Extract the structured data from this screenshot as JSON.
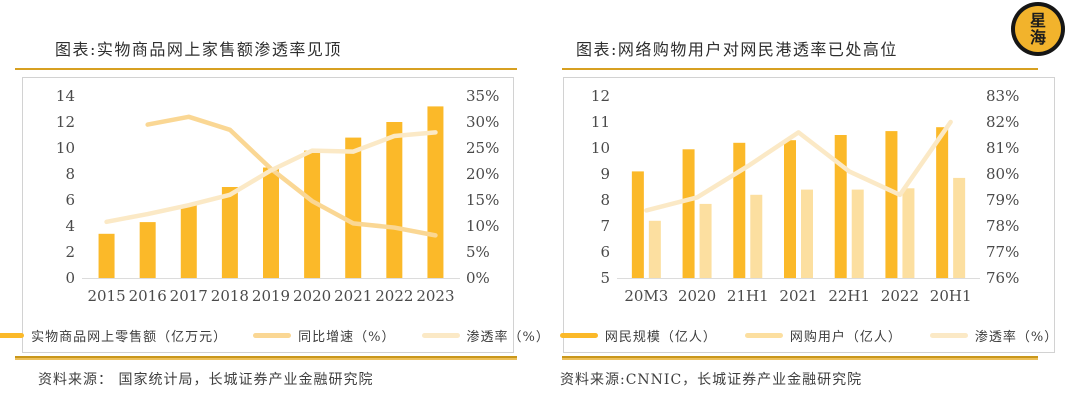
{
  "logo": {
    "char_top": "星",
    "char_bottom": "海",
    "face_color": "#F2B32C",
    "ring_color": "#161616"
  },
  "colors": {
    "accent_rule": "#D7A021",
    "box_border": "#D2D2D2",
    "axis_text": "#4A4A4A",
    "baseline": "#DCDCDC",
    "title_text": "#2E2E2E"
  },
  "charts": [
    {
      "title": "图表:实物商品网上家售额渗透率见顶",
      "source": "资料来源： 国家统计局，长城证券产业金融研究院"
    },
    {
      "title": "图表:网络购物用户对网民港透率已处高位",
      "source": "资料来源:CNNIC，长城证券产业金融研究院"
    }
  ],
  "chart_data": [
    {
      "type": "bar+line combo",
      "title": "图表:实物商品网上家售额渗透率见顶",
      "categories": [
        "2015",
        "2016",
        "2017",
        "2018",
        "2019",
        "2020",
        "2021",
        "2022",
        "2023"
      ],
      "axis_left": {
        "min": 0,
        "max": 14,
        "step": 2,
        "suffix": ""
      },
      "axis_right": {
        "min": 0,
        "max": 35,
        "step": 5,
        "suffix": "%"
      },
      "grid": false,
      "legend_position": "bottom",
      "series": [
        {
          "name": "实物商品网上零售额（亿万元）",
          "type": "bar",
          "axis": "left",
          "color": "#FBB929",
          "values": [
            3.4,
            4.3,
            5.6,
            7.0,
            8.5,
            9.8,
            10.8,
            12.0,
            13.2
          ]
        },
        {
          "name": "同比增速（%）",
          "type": "line",
          "axis": "right",
          "color": "#FAD794",
          "values": [
            null,
            29.5,
            31.0,
            28.5,
            21.0,
            14.8,
            10.5,
            9.7,
            8.2
          ]
        },
        {
          "name": "渗透率（%）",
          "type": "line",
          "axis": "right",
          "color": "#FBE9C6",
          "values": [
            10.8,
            12.3,
            14.0,
            16.0,
            20.7,
            24.5,
            24.3,
            27.3,
            28.0
          ]
        }
      ]
    },
    {
      "type": "bar+line combo",
      "title": "图表:网络购物用户对网民港透率已处高位",
      "categories": [
        "20M3",
        "2020",
        "21H1",
        "2021",
        "22H1",
        "2022",
        "20H1"
      ],
      "axis_left": {
        "min": 5,
        "max": 12,
        "step": 1,
        "suffix": ""
      },
      "axis_right": {
        "min": 76,
        "max": 83,
        "step": 1,
        "suffix": "%"
      },
      "grid": false,
      "legend_position": "bottom",
      "series": [
        {
          "name": "网民规模（亿人）",
          "type": "bar",
          "axis": "left",
          "color": "#FBB929",
          "values": [
            9.1,
            9.95,
            10.2,
            10.3,
            10.5,
            10.65,
            10.8
          ]
        },
        {
          "name": "网购用户（亿人）",
          "type": "bar",
          "axis": "left",
          "color": "#FCDFA0",
          "values": [
            7.2,
            7.85,
            8.2,
            8.4,
            8.4,
            8.45,
            8.85
          ]
        },
        {
          "name": "渗透率（%）",
          "type": "line",
          "axis": "right",
          "color": "#FBE9C6",
          "values": [
            78.6,
            79.1,
            80.3,
            81.6,
            80.1,
            79.2,
            82.0
          ]
        }
      ]
    }
  ]
}
